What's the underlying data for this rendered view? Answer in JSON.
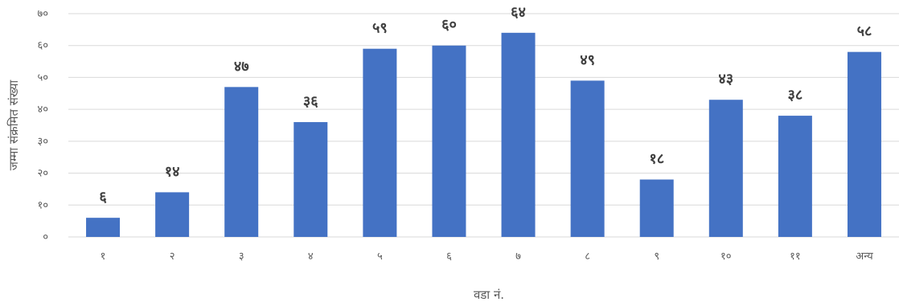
{
  "chart_data": {
    "type": "bar",
    "categories": [
      "१",
      "२",
      "३",
      "४",
      "५",
      "६",
      "७",
      "८",
      "९",
      "१०",
      "११",
      "अन्य"
    ],
    "values": [
      6,
      14,
      47,
      36,
      59,
      60,
      64,
      49,
      18,
      43,
      38,
      58
    ],
    "value_labels": [
      "६",
      "१४",
      "४७",
      "३६",
      "५९",
      "६०",
      "६४",
      "४९",
      "१८",
      "४३",
      "३८",
      "५८"
    ],
    "yticks": [
      0,
      10,
      20,
      30,
      40,
      50,
      60,
      70
    ],
    "ytick_labels": [
      "०",
      "१०",
      "२०",
      "३०",
      "४०",
      "५०",
      "६०",
      "७०"
    ],
    "ylim": [
      0,
      70
    ],
    "xlabel": "वडा नं.",
    "ylabel": "जम्मा संक्रमित संख्या",
    "title": "",
    "bar_color": "#4472C4",
    "grid": true,
    "legend": "none"
  }
}
